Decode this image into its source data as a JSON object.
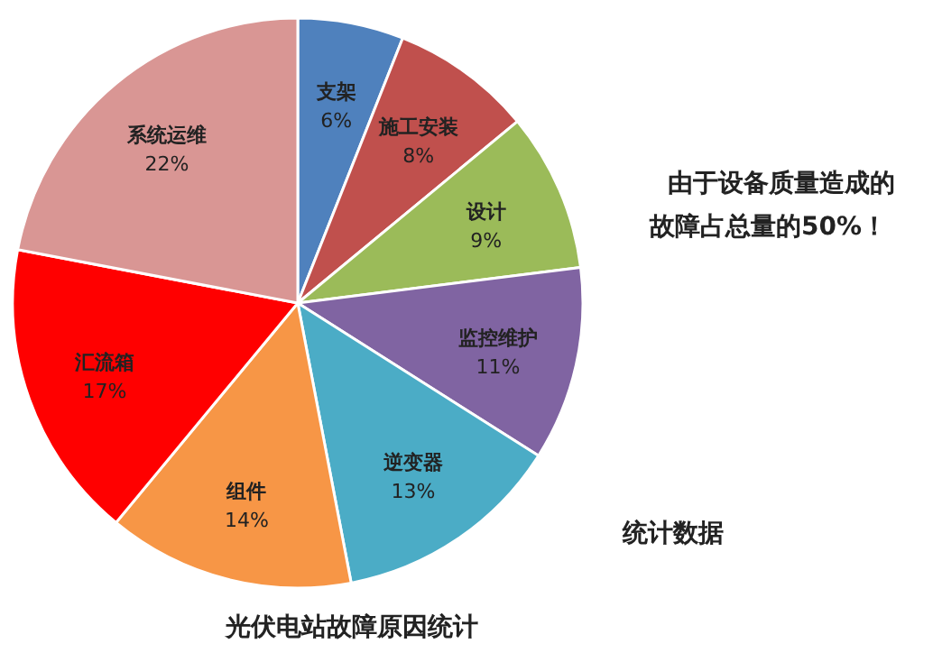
{
  "chart_data": {
    "type": "pie",
    "title": "光伏电站故障原因统计",
    "annotations": [
      "由于设备质量造成的故障占总量的50%！",
      "统计数据"
    ],
    "categories": [
      "支架",
      "施工安装",
      "设计",
      "监控维护",
      "逆变器",
      "组件",
      "汇流箱",
      "系统运维"
    ],
    "values": [
      6,
      8,
      9,
      11,
      13,
      14,
      17,
      22
    ],
    "value_labels": [
      "6%",
      "8%",
      "9%",
      "11%",
      "13%",
      "14%",
      "17%",
      "22%"
    ],
    "colors": [
      "#4f81bd",
      "#c0504d",
      "#9bbb59",
      "#8064a2",
      "#4bacc6",
      "#f79646",
      "#ff0000",
      "#d99694"
    ]
  }
}
